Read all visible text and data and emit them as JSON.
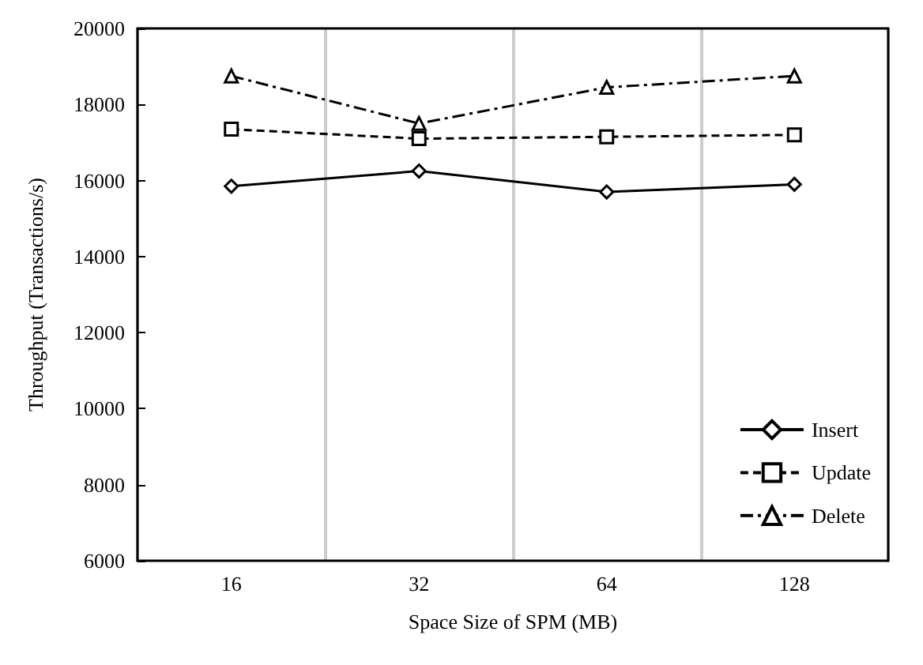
{
  "chart_data": {
    "type": "line",
    "xlabel": "Space Size of SPM (MB)",
    "ylabel": "Throughput (Transactions/s)",
    "categories": [
      "16",
      "32",
      "64",
      "128"
    ],
    "series": [
      {
        "name": "Insert",
        "color": "#000000",
        "marker": "diamond",
        "line_style": "solid",
        "values": [
          15850,
          16250,
          15700,
          15900
        ]
      },
      {
        "name": "Update",
        "color": "#000000",
        "marker": "square",
        "line_style": "dashed",
        "values": [
          17350,
          17100,
          17150,
          17200
        ]
      },
      {
        "name": "Delete",
        "color": "#000000",
        "marker": "triangle",
        "line_style": "dashdot",
        "values": [
          18750,
          17500,
          18450,
          18750
        ]
      }
    ],
    "ylim": [
      6000,
      20000
    ],
    "yticks": [
      6000,
      8000,
      10000,
      12000,
      14000,
      16000,
      18000,
      20000
    ],
    "grid": "x",
    "legend": "bottom right"
  }
}
